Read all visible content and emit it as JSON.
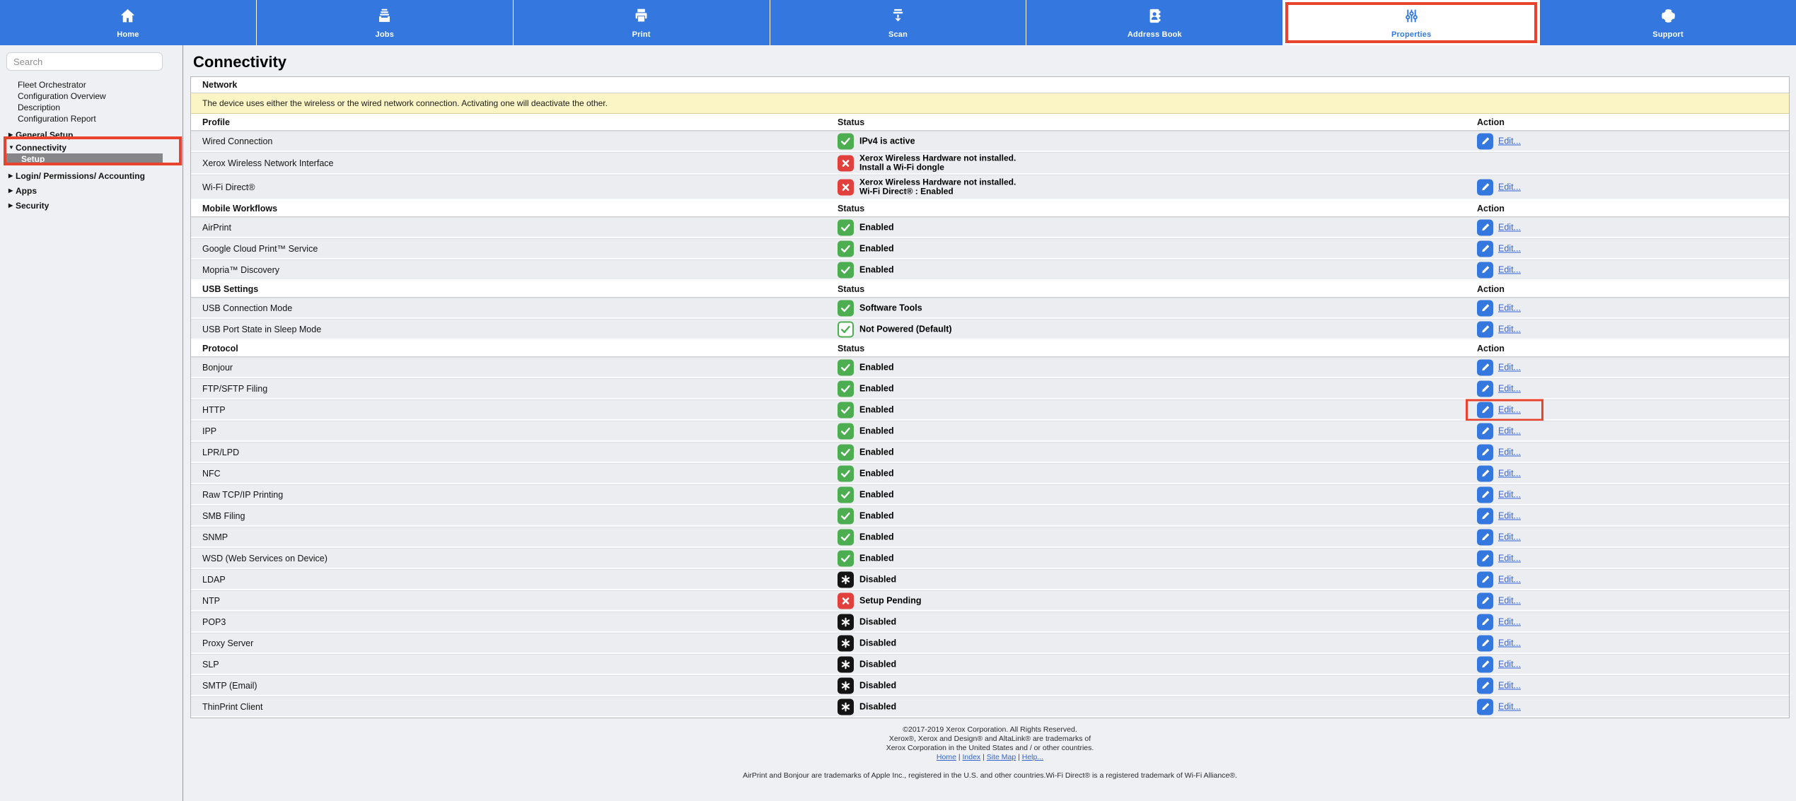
{
  "colors": {
    "nav_blue": "#3478df",
    "annotation_red": "#e8432d",
    "status_green": "#4cae50",
    "status_red": "#e2403c",
    "status_black": "#141414",
    "notice_yellow": "#fbf5c5",
    "row_gray": "#ebedf0",
    "page_bg": "#eef0f3",
    "link_blue": "#3565d0"
  },
  "nav": {
    "tabs": [
      {
        "label": "Home",
        "icon": "home-icon",
        "selected": false,
        "annotated": false
      },
      {
        "label": "Jobs",
        "icon": "jobs-icon",
        "selected": false,
        "annotated": false
      },
      {
        "label": "Print",
        "icon": "print-icon",
        "selected": false,
        "annotated": false
      },
      {
        "label": "Scan",
        "icon": "scan-icon",
        "selected": false,
        "annotated": false
      },
      {
        "label": "Address Book",
        "icon": "address-book-icon",
        "selected": false,
        "annotated": false
      },
      {
        "label": "Properties",
        "icon": "properties-icon",
        "selected": true,
        "annotated": true
      },
      {
        "label": "Support",
        "icon": "support-icon",
        "selected": false,
        "annotated": false
      }
    ]
  },
  "sidebar": {
    "search_placeholder": "Search",
    "links": [
      "Fleet Orchestrator",
      "Configuration Overview",
      "Description",
      "Configuration Report"
    ],
    "tree": [
      {
        "label": "General Setup",
        "expanded": false,
        "annotated": false,
        "children": []
      },
      {
        "label": "Connectivity",
        "expanded": true,
        "annotated": true,
        "children": [
          {
            "label": "Setup",
            "selected": true
          }
        ]
      },
      {
        "label": "Login/ Permissions/ Accounting",
        "expanded": false,
        "annotated": false,
        "children": []
      },
      {
        "label": "Apps",
        "expanded": false,
        "annotated": false,
        "children": []
      },
      {
        "label": "Security",
        "expanded": false,
        "annotated": false,
        "children": []
      }
    ]
  },
  "page": {
    "title": "Connectivity"
  },
  "table": {
    "edit_label": "Edit...",
    "columns": {
      "profile": "Profile",
      "status": "Status",
      "action": "Action"
    },
    "rows": [
      {
        "type": "section",
        "label": "Network"
      },
      {
        "type": "notice",
        "text": "The device uses either the wireless or the wired network connection. Activating one will deactivate the other."
      },
      {
        "type": "columns",
        "label": "Profile"
      },
      {
        "type": "item",
        "label": "Wired Connection",
        "icon": "check",
        "status": "IPv4 is active",
        "edit": true,
        "annotated": false
      },
      {
        "type": "item",
        "label": "Xerox Wireless Network Interface",
        "icon": "cross",
        "status_lines": [
          "Xerox Wireless Hardware not installed.",
          "Install a Wi-Fi dongle"
        ],
        "edit": false,
        "annotated": false
      },
      {
        "type": "item",
        "label": "Wi-Fi Direct®",
        "icon": "cross",
        "status_lines": [
          "Xerox Wireless Hardware not installed.",
          "Wi-Fi Direct® : Enabled"
        ],
        "edit": true,
        "annotated": false
      },
      {
        "type": "columns",
        "label": "Mobile Workflows"
      },
      {
        "type": "item",
        "label": "AirPrint",
        "icon": "check",
        "status": "Enabled",
        "edit": true,
        "annotated": false
      },
      {
        "type": "item",
        "label": "Google Cloud Print™ Service",
        "icon": "check",
        "status": "Enabled",
        "edit": true,
        "annotated": false
      },
      {
        "type": "item",
        "label": "Mopria™ Discovery",
        "icon": "check",
        "status": "Enabled",
        "edit": true,
        "annotated": false
      },
      {
        "type": "columns",
        "label": "USB Settings"
      },
      {
        "type": "item",
        "label": "USB Connection Mode",
        "icon": "check",
        "status": "Software Tools",
        "edit": true,
        "annotated": false
      },
      {
        "type": "item",
        "label": "USB Port State in Sleep Mode",
        "icon": "check-outline",
        "status": "Not Powered (Default)",
        "edit": true,
        "annotated": false
      },
      {
        "type": "columns",
        "label": "Protocol"
      },
      {
        "type": "item",
        "label": "Bonjour",
        "icon": "check",
        "status": "Enabled",
        "edit": true,
        "annotated": false
      },
      {
        "type": "item",
        "label": "FTP/SFTP Filing",
        "icon": "check",
        "status": "Enabled",
        "edit": true,
        "annotated": false
      },
      {
        "type": "item",
        "label": "HTTP",
        "icon": "check",
        "status": "Enabled",
        "edit": true,
        "annotated": true
      },
      {
        "type": "item",
        "label": "IPP",
        "icon": "check",
        "status": "Enabled",
        "edit": true,
        "annotated": false
      },
      {
        "type": "item",
        "label": "LPR/LPD",
        "icon": "check",
        "status": "Enabled",
        "edit": true,
        "annotated": false
      },
      {
        "type": "item",
        "label": "NFC",
        "icon": "check",
        "status": "Enabled",
        "edit": true,
        "annotated": false
      },
      {
        "type": "item",
        "label": "Raw TCP/IP Printing",
        "icon": "check",
        "status": "Enabled",
        "edit": true,
        "annotated": false
      },
      {
        "type": "item",
        "label": "SMB Filing",
        "icon": "check",
        "status": "Enabled",
        "edit": true,
        "annotated": false
      },
      {
        "type": "item",
        "label": "SNMP",
        "icon": "check",
        "status": "Enabled",
        "edit": true,
        "annotated": false
      },
      {
        "type": "item",
        "label": "WSD (Web Services on Device)",
        "icon": "check",
        "status": "Enabled",
        "edit": true,
        "annotated": false
      },
      {
        "type": "item",
        "label": "LDAP",
        "icon": "asterisk",
        "status": "Disabled",
        "edit": true,
        "annotated": false
      },
      {
        "type": "item",
        "label": "NTP",
        "icon": "cross",
        "status": "Setup Pending",
        "edit": true,
        "annotated": false
      },
      {
        "type": "item",
        "label": "POP3",
        "icon": "asterisk",
        "status": "Disabled",
        "edit": true,
        "annotated": false
      },
      {
        "type": "item",
        "label": "Proxy Server",
        "icon": "asterisk",
        "status": "Disabled",
        "edit": true,
        "annotated": false
      },
      {
        "type": "item",
        "label": "SLP",
        "icon": "asterisk",
        "status": "Disabled",
        "edit": true,
        "annotated": false
      },
      {
        "type": "item",
        "label": "SMTP (Email)",
        "icon": "asterisk",
        "status": "Disabled",
        "edit": true,
        "annotated": false
      },
      {
        "type": "item",
        "label": "ThinPrint Client",
        "icon": "asterisk",
        "status": "Disabled",
        "edit": true,
        "annotated": false
      }
    ]
  },
  "footer": {
    "copyright_lines": [
      "©2017-2019  Xerox Corporation. All Rights Reserved.",
      "Xerox®, Xerox and Design® and AltaLink® are trademarks of",
      "Xerox Corporation in the United States and / or other countries."
    ],
    "links": [
      "Home",
      "Index",
      "Site Map",
      "Help..."
    ],
    "trademark_line": "AirPrint and Bonjour are trademarks of Apple Inc., registered in the U.S. and other countries.Wi-Fi Direct® is a registered trademark of Wi-Fi Alliance®."
  }
}
